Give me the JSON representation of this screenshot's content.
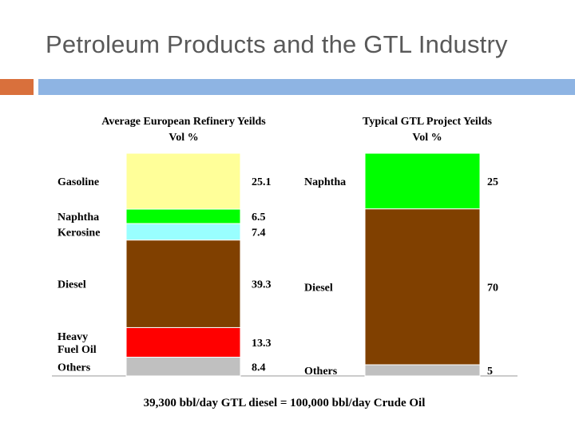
{
  "slide": {
    "title": "Petroleum Products and the GTL Industry",
    "accent_color": "#D9703C",
    "bar_color": "#8EB4E3"
  },
  "chart_data": {
    "type": "bar",
    "stacked": true,
    "unit": "Vol %",
    "footnote": "39,300 bbl/day GTL diesel = 100,000 bbl/day Crude Oil",
    "bars": [
      {
        "title_line1": "Average European Refinery Yeilds",
        "title_line2": "Vol %",
        "segments": [
          {
            "label": "Gasoline",
            "value": 25.1,
            "value_label": "25.1",
            "color": "#FFFF99"
          },
          {
            "label": "Naphtha",
            "value": 6.5,
            "value_label": "6.5",
            "color": "#00FF00"
          },
          {
            "label": "Kerosine",
            "value": 7.4,
            "value_label": "7.4",
            "color": "#99FFFF"
          },
          {
            "label": "Diesel",
            "value": 39.3,
            "value_label": "39.3",
            "color": "#804000"
          },
          {
            "label": "Heavy Fuel Oil",
            "label_lines": [
              "Heavy",
              "Fuel Oil"
            ],
            "value": 13.3,
            "value_label": "13.3",
            "color": "#FF0000"
          },
          {
            "label": "Others",
            "value": 8.4,
            "value_label": "8.4",
            "color": "#C0C0C0"
          }
        ]
      },
      {
        "title_line1": "Typical GTL Project Yeilds",
        "title_line2": "Vol %",
        "segments": [
          {
            "label": "Naphtha",
            "value": 25,
            "value_label": "25",
            "color": "#00FF00"
          },
          {
            "label": "Diesel",
            "value": 70,
            "value_label": "70",
            "color": "#804000"
          },
          {
            "label": "Others",
            "value": 5,
            "value_label": "5",
            "color": "#C0C0C0"
          }
        ]
      }
    ]
  }
}
